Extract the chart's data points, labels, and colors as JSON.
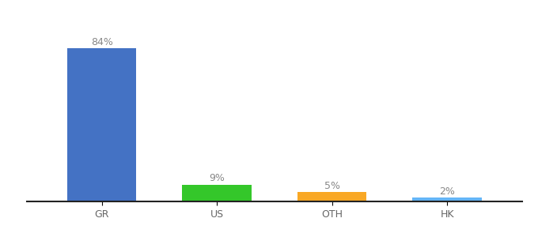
{
  "categories": [
    "GR",
    "US",
    "OTH",
    "HK"
  ],
  "values": [
    84,
    9,
    5,
    2
  ],
  "labels": [
    "84%",
    "9%",
    "5%",
    "2%"
  ],
  "bar_colors": [
    "#4472C4",
    "#34C72A",
    "#F9A825",
    "#64B5F6"
  ],
  "background_color": "#ffffff",
  "ylim": [
    0,
    95
  ],
  "bar_width": 0.6,
  "label_fontsize": 9,
  "tick_fontsize": 9,
  "label_color": "#888888",
  "tick_color": "#666666",
  "spine_color": "#222222"
}
